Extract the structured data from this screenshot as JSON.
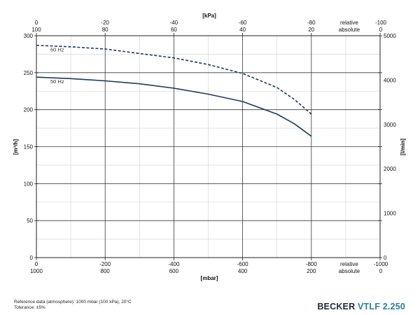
{
  "chart_data": {
    "type": "line",
    "x_bottom": {
      "label": "[mbar]",
      "relative_ticks": [
        "0",
        "-200",
        "-400",
        "-600",
        "-800"
      ],
      "absolute_ticks": [
        "1000",
        "800",
        "600",
        "400",
        "200"
      ],
      "relative_end": "-1000",
      "absolute_end": "0",
      "range": [
        0,
        -1000
      ]
    },
    "x_top": {
      "label": "[kPa]",
      "relative_ticks": [
        "0",
        "-20",
        "-40",
        "-60",
        "-80"
      ],
      "absolute_ticks": [
        "100",
        "80",
        "60",
        "40",
        "20"
      ],
      "relative_end": "-100",
      "absolute_end": "0"
    },
    "relative_label": "relative",
    "absolute_label": "absolute",
    "y_left": {
      "label": "[m³/h]",
      "ticks": [
        "0",
        "50",
        "100",
        "150",
        "200",
        "250",
        "300"
      ],
      "range": [
        0,
        300
      ]
    },
    "y_right": {
      "label": "[l/min]",
      "ticks": [
        "0",
        "1000",
        "2000",
        "3000",
        "4000",
        "5000"
      ],
      "range": [
        0,
        5000
      ]
    },
    "series": [
      {
        "name": "60 Hz",
        "style": "dashed",
        "x": [
          0,
          -100,
          -200,
          -300,
          -400,
          -500,
          -600,
          -700,
          -750,
          -800
        ],
        "y": [
          287,
          285,
          282,
          276,
          270,
          261,
          249,
          230,
          214,
          194
        ]
      },
      {
        "name": "50 Hz",
        "style": "solid",
        "x": [
          0,
          -100,
          -200,
          -300,
          -400,
          -500,
          -600,
          -700,
          -750,
          -800
        ],
        "y": [
          244,
          242,
          239,
          235,
          229,
          221,
          211,
          194,
          181,
          164
        ]
      }
    ],
    "grid": true,
    "line_color": "#1e3a5a"
  },
  "footer": {
    "reference": "Reference data (atmosphere): 1000 mbar (100 kPa), 20°C",
    "tolerance": "Tolerance: ±5%",
    "brand_primary": "BECKER",
    "brand_secondary": "VTLF 2.250"
  }
}
